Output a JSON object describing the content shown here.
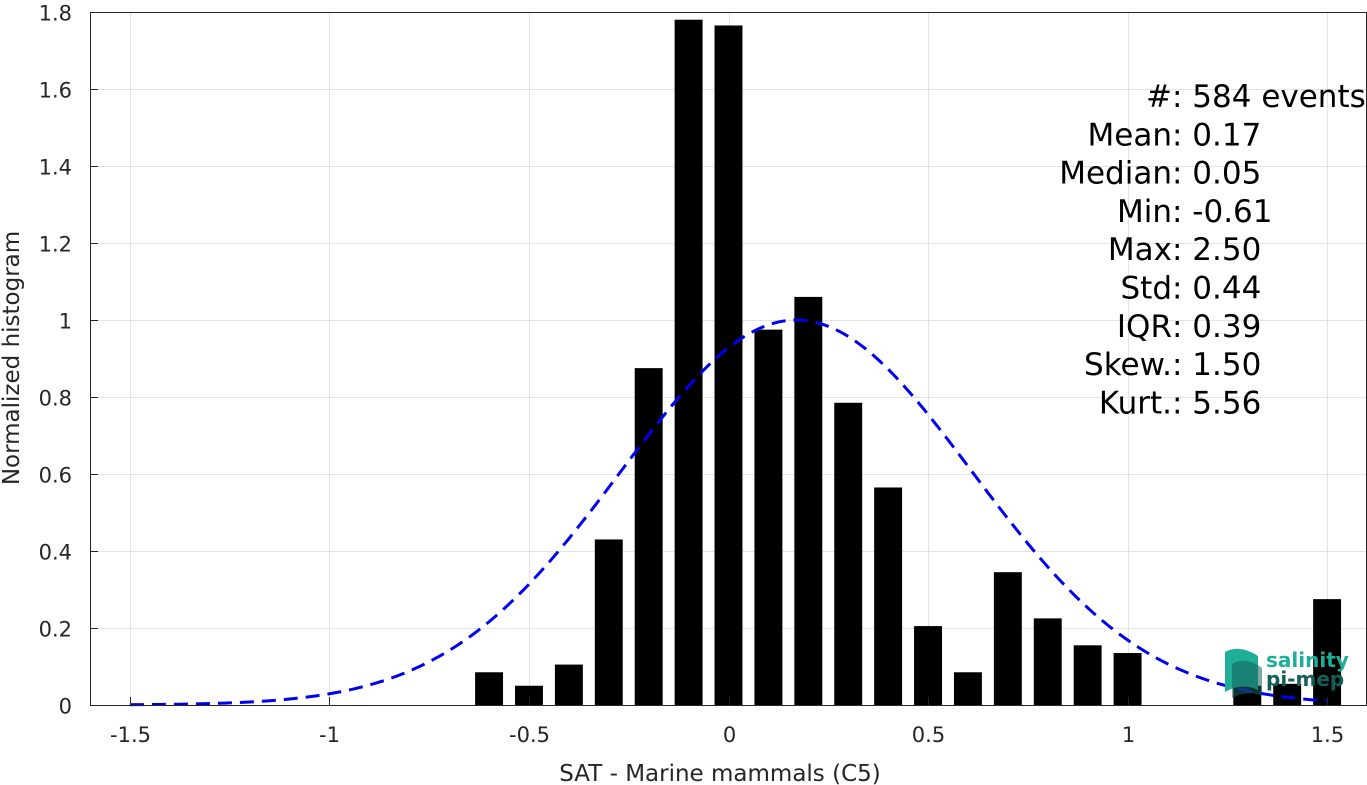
{
  "chart_data": {
    "type": "bar",
    "xlabel": "SAT - Marine mammals (C5)",
    "ylabel": "Normalized histogram",
    "xlim": [
      -1.6,
      1.6
    ],
    "ylim": [
      0,
      1.8
    ],
    "x_ticks": [
      {
        "value": -1.5,
        "label": "-1.5"
      },
      {
        "value": -1.0,
        "label": "-1"
      },
      {
        "value": -0.5,
        "label": "-0.5"
      },
      {
        "value": 0.0,
        "label": "0"
      },
      {
        "value": 0.5,
        "label": "0.5"
      },
      {
        "value": 1.0,
        "label": "1"
      },
      {
        "value": 1.5,
        "label": "1.5"
      }
    ],
    "y_ticks": [
      {
        "value": 0,
        "label": "0"
      },
      {
        "value": 0.2,
        "label": "0.2"
      },
      {
        "value": 0.4,
        "label": "0.4"
      },
      {
        "value": 0.6,
        "label": "0.6"
      },
      {
        "value": 0.8,
        "label": "0.8"
      },
      {
        "value": 1.0,
        "label": "1"
      },
      {
        "value": 1.2,
        "label": "1.2"
      },
      {
        "value": 1.4,
        "label": "1.4"
      },
      {
        "value": 1.6,
        "label": "1.6"
      },
      {
        "value": 1.8,
        "label": "1.8"
      }
    ],
    "grid": true,
    "bar_width": 0.07,
    "bars": [
      {
        "x": -0.6,
        "y": 0.085
      },
      {
        "x": -0.5,
        "y": 0.05
      },
      {
        "x": -0.4,
        "y": 0.105
      },
      {
        "x": -0.3,
        "y": 0.43
      },
      {
        "x": -0.2,
        "y": 0.875
      },
      {
        "x": -0.1,
        "y": 1.78
      },
      {
        "x": 0.0,
        "y": 1.765
      },
      {
        "x": 0.1,
        "y": 0.975
      },
      {
        "x": 0.2,
        "y": 1.06
      },
      {
        "x": 0.3,
        "y": 0.785
      },
      {
        "x": 0.4,
        "y": 0.565
      },
      {
        "x": 0.5,
        "y": 0.205
      },
      {
        "x": 0.6,
        "y": 0.085
      },
      {
        "x": 0.7,
        "y": 0.345
      },
      {
        "x": 0.8,
        "y": 0.225
      },
      {
        "x": 0.9,
        "y": 0.155
      },
      {
        "x": 1.0,
        "y": 0.135
      },
      {
        "x": 1.3,
        "y": 0.05
      },
      {
        "x": 1.4,
        "y": 0.055
      },
      {
        "x": 1.5,
        "y": 0.275
      }
    ],
    "bar_color": "#000000",
    "fit_curve": {
      "style": "dashed",
      "color": "#0000ee",
      "x_range": [
        -1.5,
        1.5
      ],
      "mean": 0.17,
      "std": 0.44,
      "peak": 1.0
    },
    "stats": [
      {
        "label": "#  ",
        "value": ": 584 events"
      },
      {
        "label": "Mean ",
        "value": ": 0.17"
      },
      {
        "label": "Median ",
        "value": ": 0.05"
      },
      {
        "label": "Min ",
        "value": ": -0.61"
      },
      {
        "label": "Max ",
        "value": ": 2.50"
      },
      {
        "label": "Std ",
        "value": ": 0.44"
      },
      {
        "label": "IQR ",
        "value": ": 0.39"
      },
      {
        "label": "Skew. ",
        "value": ": 1.50"
      },
      {
        "label": "Kurt. ",
        "value": ": 5.56"
      }
    ]
  },
  "logo": {
    "line1": "salinity",
    "line2": "pi-mep",
    "color1": "#1fae98",
    "color2": "#155e57"
  }
}
